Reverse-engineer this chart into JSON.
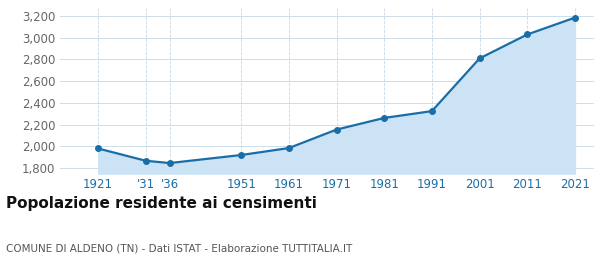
{
  "years": [
    1921,
    1931,
    1936,
    1951,
    1961,
    1971,
    1981,
    1991,
    2001,
    2011,
    2021
  ],
  "population": [
    1981,
    1868,
    1847,
    1921,
    1985,
    2155,
    2262,
    2325,
    2810,
    3030,
    3185
  ],
  "x_tick_labels": [
    "1921",
    "'31",
    "'36",
    "1951",
    "1961",
    "1971",
    "1981",
    "1991",
    "2001",
    "2011",
    "2021"
  ],
  "ylim": [
    1750,
    3270
  ],
  "yticks": [
    1800,
    2000,
    2200,
    2400,
    2600,
    2800,
    3000,
    3200
  ],
  "line_color": "#1a6ea8",
  "fill_color": "#cce3f5",
  "marker_color": "#1a6ea8",
  "grid_color": "#c5d8e8",
  "bg_color": "#ffffff",
  "title": "Popolazione residente ai censimenti",
  "subtitle": "COMUNE DI ALDENO (TN) - Dati ISTAT - Elaborazione TUTTITALIA.IT",
  "title_fontsize": 11,
  "subtitle_fontsize": 7.5,
  "tick_fontsize": 8.5,
  "ytick_fontsize": 8.5
}
